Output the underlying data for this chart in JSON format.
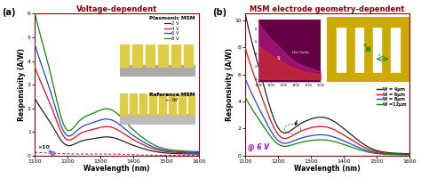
{
  "panel_a_title": "Voltage-dependent",
  "panel_b_title": "MSM electrode geometry-dependent",
  "xlabel": "Wavelength (nm)",
  "ylabel_a": "Responsivity (A/W)",
  "ylabel_b": "Responsivity (A/W)",
  "xlim": [
    1100,
    1600
  ],
  "ylim_a": [
    0,
    6
  ],
  "ylim_b": [
    0,
    10.5
  ],
  "yticks_a": [
    0,
    1,
    2,
    3,
    4,
    5,
    6
  ],
  "yticks_b": [
    0,
    2,
    4,
    6,
    8,
    10
  ],
  "panel_a_label": "(a)",
  "panel_b_label": "(b)",
  "plasmonic_legend_title": "Plasmonic MSM",
  "reference_legend_title": "Reference MSM",
  "reference_legend_sub": "6V",
  "annotation_a": "×10",
  "annotation_b": "@ 6 V",
  "curves_a": {
    "2V": {
      "color": "#222222",
      "label": "2 V",
      "scale": 1.0
    },
    "4V": {
      "color": "#dd1111",
      "label": "4 V",
      "scale": 1.55
    },
    "6V": {
      "color": "#2244dd",
      "label": "6 V",
      "scale": 1.95
    },
    "8V": {
      "color": "#118800",
      "label": "8 V",
      "scale": 2.5
    }
  },
  "curves_b": {
    "W4": {
      "color": "#222222",
      "label": "W = 4μm",
      "scale": 2.3
    },
    "W6": {
      "color": "#dd1111",
      "label": "W = 6μm",
      "scale": 1.75
    },
    "W8": {
      "color": "#2244dd",
      "label": "W = 8μm",
      "scale": 1.25
    },
    "W12": {
      "color": "#118800",
      "label": "W =12μm",
      "scale": 0.95
    }
  },
  "ref_color": "#7733bb",
  "background_color": "#ffffff",
  "title_color": "#8b0000",
  "border_color": "#8b0000"
}
